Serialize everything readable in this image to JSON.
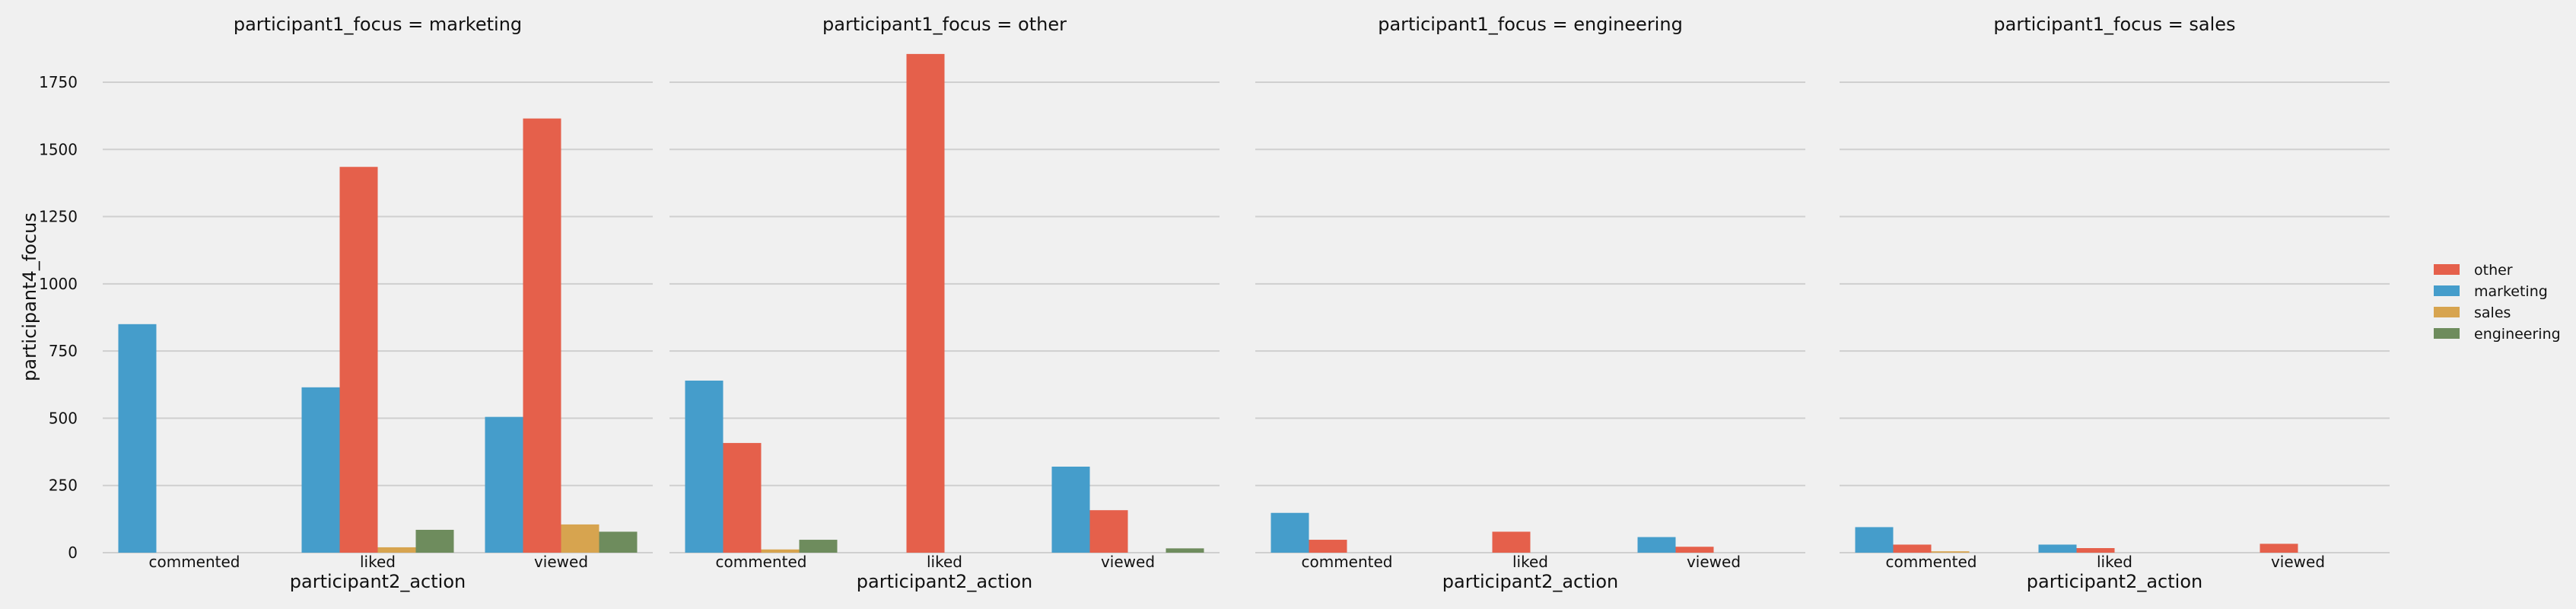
{
  "chart_data": {
    "type": "bar",
    "facet_titles": [
      "participant1_focus = marketing",
      "participant1_focus = other",
      "participant1_focus = engineering",
      "participant1_focus = sales"
    ],
    "categories": [
      "commented",
      "liked",
      "viewed"
    ],
    "xlabel": "participant2_action",
    "ylabel": "participant4_focus",
    "ylim": [
      0,
      1900
    ],
    "yticks": [
      0,
      250,
      500,
      750,
      1000,
      1250,
      1500,
      1750
    ],
    "grid": true,
    "legend_position": "right",
    "legend": [
      {
        "name": "other",
        "color": "#E5604B"
      },
      {
        "name": "marketing",
        "color": "#459DCB"
      },
      {
        "name": "sales",
        "color": "#D7A44F"
      },
      {
        "name": "engineering",
        "color": "#6E8C5D"
      }
    ],
    "panels": [
      {
        "series": [
          {
            "name": "marketing",
            "values": [
              850,
              615,
              505
            ]
          },
          {
            "name": "other",
            "values": [
              0,
              1435,
              1615
            ]
          },
          {
            "name": "sales",
            "values": [
              0,
              20,
              105
            ]
          },
          {
            "name": "engineering",
            "values": [
              0,
              85,
              78
            ]
          }
        ]
      },
      {
        "series": [
          {
            "name": "marketing",
            "values": [
              640,
              0,
              320
            ]
          },
          {
            "name": "other",
            "values": [
              408,
              1855,
              158
            ]
          },
          {
            "name": "sales",
            "values": [
              12,
              0,
              0
            ]
          },
          {
            "name": "engineering",
            "values": [
              48,
              0,
              16
            ]
          }
        ]
      },
      {
        "series": [
          {
            "name": "marketing",
            "values": [
              148,
              0,
              58
            ]
          },
          {
            "name": "other",
            "values": [
              48,
              78,
              22
            ]
          },
          {
            "name": "sales",
            "values": [
              0,
              0,
              0
            ]
          },
          {
            "name": "engineering",
            "values": [
              0,
              0,
              0
            ]
          }
        ]
      },
      {
        "series": [
          {
            "name": "marketing",
            "values": [
              95,
              30,
              0
            ]
          },
          {
            "name": "other",
            "values": [
              30,
              17,
              33
            ]
          },
          {
            "name": "sales",
            "values": [
              5,
              0,
              0
            ]
          },
          {
            "name": "engineering",
            "values": [
              0,
              0,
              0
            ]
          }
        ]
      }
    ]
  }
}
